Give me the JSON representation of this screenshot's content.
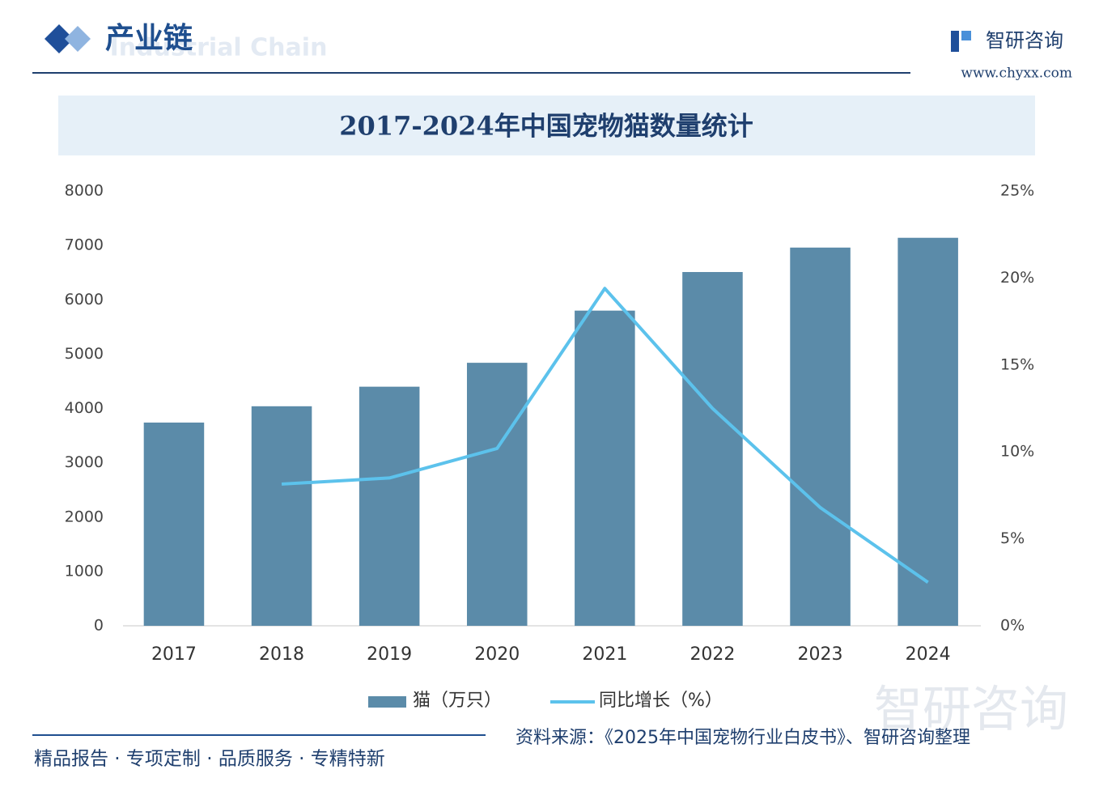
{
  "header": {
    "title": "产业链",
    "subtitle": "Industrial Chain",
    "brand": "智研咨询",
    "url": "www.chyxx.com"
  },
  "chart_data": {
    "type": "bar",
    "title": "2017-2024年中国宠物猫数量统计",
    "categories": [
      "2017",
      "2018",
      "2019",
      "2020",
      "2021",
      "2022",
      "2023",
      "2024"
    ],
    "series": [
      {
        "name": "猫（万只）",
        "type": "bar",
        "color": "#5b8ba9",
        "values": [
          3740,
          4040,
          4400,
          4840,
          5800,
          6510,
          6960,
          7140
        ]
      },
      {
        "name": "同比增长（%）",
        "type": "line",
        "axis": "y2",
        "color": "#5cc2ec",
        "values": [
          null,
          8.15,
          8.5,
          10.2,
          19.4,
          12.5,
          6.8,
          2.5
        ]
      }
    ],
    "ylim": [
      0,
      8000
    ],
    "yticks": [
      0,
      1000,
      2000,
      3000,
      4000,
      5000,
      6000,
      7000,
      8000
    ],
    "y2lim": [
      0,
      25
    ],
    "y2ticks": [
      {
        "value": 0,
        "label": "0%"
      },
      {
        "value": 5,
        "label": "5%"
      },
      {
        "value": 10,
        "label": "10%"
      },
      {
        "value": 15,
        "label": "15%"
      },
      {
        "value": 20,
        "label": "20%"
      },
      {
        "value": 25,
        "label": "25%"
      }
    ],
    "grid": false,
    "legend": "bottom"
  },
  "footer": {
    "slogan": "精品报告 · 专项定制 · 品质服务 · 专精特新",
    "source": "资料来源：《2025年中国宠物行业白皮书》、智研咨询整理",
    "watermark": "智研咨询"
  }
}
